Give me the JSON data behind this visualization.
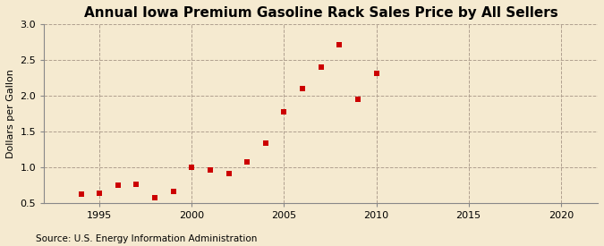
{
  "title": "Annual Iowa Premium Gasoline Rack Sales Price by All Sellers",
  "ylabel": "Dollars per Gallon",
  "source": "Source: U.S. Energy Information Administration",
  "background_color": "#f5ead0",
  "years": [
    1994,
    1995,
    1996,
    1997,
    1998,
    1999,
    2000,
    2001,
    2002,
    2003,
    2004,
    2005,
    2006,
    2007,
    2008,
    2009,
    2010
  ],
  "values": [
    0.63,
    0.64,
    0.75,
    0.76,
    0.58,
    0.66,
    1.0,
    0.96,
    0.91,
    1.07,
    1.34,
    1.78,
    2.1,
    2.4,
    2.72,
    1.95,
    2.32
  ],
  "marker_color": "#cc0000",
  "marker_size": 4,
  "xlim": [
    1992,
    2022
  ],
  "ylim": [
    0.5,
    3.0
  ],
  "xticks": [
    1995,
    2000,
    2005,
    2010,
    2015,
    2020
  ],
  "yticks": [
    0.5,
    1.0,
    1.5,
    2.0,
    2.5,
    3.0
  ],
  "grid_color": "#b0a090",
  "title_fontsize": 11,
  "axis_label_fontsize": 8,
  "tick_fontsize": 8,
  "source_fontsize": 7.5
}
